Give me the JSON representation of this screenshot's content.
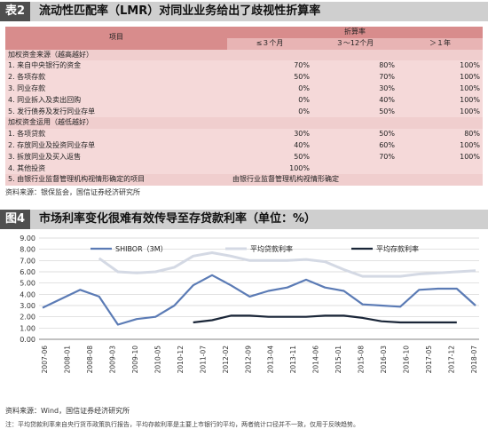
{
  "table_section": {
    "number": "表2",
    "title": "流动性匹配率（LMR）对同业业务给出了歧视性折算率",
    "header": {
      "item": "项目",
      "group": "折算率",
      "cols": [
        "≤３个月",
        "３～12个月",
        "＞１年"
      ]
    },
    "rows": [
      {
        "label": "加权资金来源（越高越好）",
        "section": true,
        "values": [
          "",
          "",
          ""
        ]
      },
      {
        "label": "1. 来自中央银行的资金",
        "values": [
          "70%",
          "80%",
          "100%"
        ]
      },
      {
        "label": "2. 各项存款",
        "values": [
          "50%",
          "70%",
          "100%"
        ]
      },
      {
        "label": "3. 同业存款",
        "values": [
          "0%",
          "30%",
          "100%"
        ]
      },
      {
        "label": "4. 同业拆入及卖出回购",
        "values": [
          "0%",
          "40%",
          "100%"
        ]
      },
      {
        "label": "5. 发行债券及发行同业存单",
        "values": [
          "0%",
          "50%",
          "100%"
        ]
      },
      {
        "label": "加权资金运用（越低越好）",
        "section": true,
        "values": [
          "",
          "",
          ""
        ]
      },
      {
        "label": "1. 各项贷款",
        "values": [
          "30%",
          "50%",
          "80%"
        ]
      },
      {
        "label": "2. 存放同业及投资同业存单",
        "values": [
          "40%",
          "60%",
          "100%"
        ]
      },
      {
        "label": "3. 拆放同业及买入返售",
        "values": [
          "50%",
          "70%",
          "100%"
        ]
      },
      {
        "label": "4. 其他投资",
        "values": [
          "100%",
          "",
          ""
        ]
      },
      {
        "label": "5. 由银行业监督管理机构视情形确定的项目",
        "last": true,
        "span_text": "由银行业监督管理机构视情形确定"
      }
    ],
    "source": "资料来源：银保监会，国信证券经济研究所"
  },
  "chart_section": {
    "number": "图4",
    "title": "市场利率变化很难有效传导至存贷款利率（单位：%）",
    "source": "资料来源：Wind，国信证券经济研究所",
    "note": "注：平均贷款利率来自央行货币政策执行报告，平均存款利率是主要上市银行的平均，两者统计口径并不一致，仅用于反映趋势。"
  },
  "chart_data": {
    "type": "line",
    "categories": [
      "2007-06",
      "2007-12",
      "2008-06",
      "2008-12",
      "2009-06",
      "2009-12",
      "2010-06",
      "2010-12",
      "2011-06",
      "2011-12",
      "2012-06",
      "2012-12",
      "2013-06",
      "2013-12",
      "2014-06",
      "2014-12",
      "2015-06",
      "2015-12",
      "2016-06",
      "2016-12",
      "2017-06",
      "2017-12",
      "2018-06",
      "2018-12"
    ],
    "tick_labels": [
      "2007-06",
      "2008-01",
      "2008-08",
      "2009-03",
      "2009-10",
      "2010-05",
      "2010-12",
      "2011-07",
      "2012-02",
      "2012-09",
      "2013-04",
      "2013-11",
      "2014-06",
      "2015-01",
      "2015-08",
      "2016-03",
      "2016-10",
      "2017-05",
      "2017-12",
      "2018-07"
    ],
    "ylim": [
      0,
      9
    ],
    "yticks": [
      "0.00",
      "1.00",
      "2.00",
      "3.00",
      "4.00",
      "5.00",
      "6.00",
      "7.00",
      "8.00",
      "9.00"
    ],
    "grid": true,
    "legend_position": "top",
    "series": [
      {
        "name": "SHIBOR（3M）",
        "color": "#5b7bb5",
        "values": [
          2.8,
          3.6,
          4.4,
          3.8,
          1.3,
          1.8,
          2.0,
          3.0,
          4.8,
          5.7,
          4.8,
          3.8,
          4.3,
          4.6,
          5.3,
          4.6,
          4.3,
          3.1,
          3.0,
          2.9,
          4.4,
          4.5,
          4.5,
          3.0
        ]
      },
      {
        "name": "平均贷款利率",
        "color": "#d4d9e4",
        "values": [
          null,
          null,
          null,
          7.2,
          6.0,
          5.9,
          6.0,
          6.4,
          7.4,
          7.7,
          7.4,
          7.0,
          7.0,
          7.0,
          7.1,
          6.9,
          6.2,
          5.6,
          5.6,
          5.6,
          5.8,
          5.9,
          6.0,
          6.1
        ]
      },
      {
        "name": "平均存款利率",
        "color": "#1a2638",
        "values": [
          null,
          null,
          null,
          null,
          null,
          null,
          null,
          null,
          1.5,
          1.7,
          2.1,
          2.1,
          2.0,
          2.0,
          2.0,
          2.1,
          2.1,
          1.9,
          1.6,
          1.5,
          1.5,
          1.5,
          1.5,
          null
        ]
      }
    ]
  }
}
